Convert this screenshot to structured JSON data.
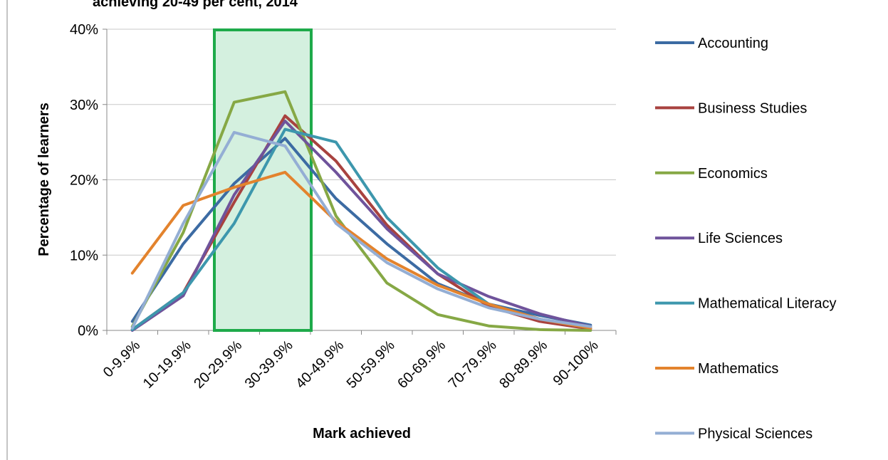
{
  "chart_data": {
    "type": "line",
    "title": "achieving 20-49 per cent, 2014",
    "x_label": "Mark achieved",
    "y_label": "Percentage of learners",
    "categories": [
      "0-9.9%",
      "10-19.9%",
      "20-29.9%",
      "30-39.9%",
      "40-49.9%",
      "50-59.9%",
      "60-69.9%",
      "70-79.9%",
      "80-89.9%",
      "90-100%"
    ],
    "ylim": [
      0,
      40
    ],
    "yticks": [
      {
        "value": 0,
        "label": "0%"
      },
      {
        "value": 10,
        "label": "10%"
      },
      {
        "value": 20,
        "label": "20%"
      },
      {
        "value": 30,
        "label": "30%"
      },
      {
        "value": 40,
        "label": "40%"
      }
    ],
    "grid": true,
    "legend": "right",
    "series": [
      {
        "name": "Accounting",
        "color": "#3c6ba3",
        "values": [
          1.2,
          11.5,
          19.5,
          25.5,
          17.5,
          11.5,
          6.2,
          3.5,
          2,
          0.7
        ]
      },
      {
        "name": "Business Studies",
        "color": "#a8423f",
        "values": [
          0.1,
          5,
          17,
          28.5,
          22.5,
          14,
          7.5,
          3.2,
          1.2,
          0.2
        ]
      },
      {
        "name": "Economics",
        "color": "#86a845",
        "values": [
          0.5,
          13,
          30.3,
          31.7,
          15.2,
          6.3,
          2.1,
          0.6,
          0.1,
          0
        ]
      },
      {
        "name": "Life Sciences",
        "color": "#6f539b",
        "values": [
          0,
          4.6,
          18,
          27.8,
          21,
          13.5,
          7.5,
          4.5,
          2.2,
          0.5
        ]
      },
      {
        "name": "Mathematical Literacy",
        "color": "#3d97ad",
        "values": [
          0.1,
          5,
          14.2,
          26.7,
          25,
          15,
          8.3,
          3.5,
          1.5,
          0.3
        ]
      },
      {
        "name": "Mathematics",
        "color": "#e3832d",
        "values": [
          7.6,
          16.6,
          19,
          21,
          14.5,
          9.5,
          6,
          3.5,
          1.5,
          0.3
        ]
      },
      {
        "name": "Physical Sciences",
        "color": "#94aed4",
        "values": [
          0.3,
          14.2,
          26.3,
          24.5,
          14.2,
          9,
          5.5,
          3,
          1.5,
          0.5
        ]
      }
    ]
  }
}
